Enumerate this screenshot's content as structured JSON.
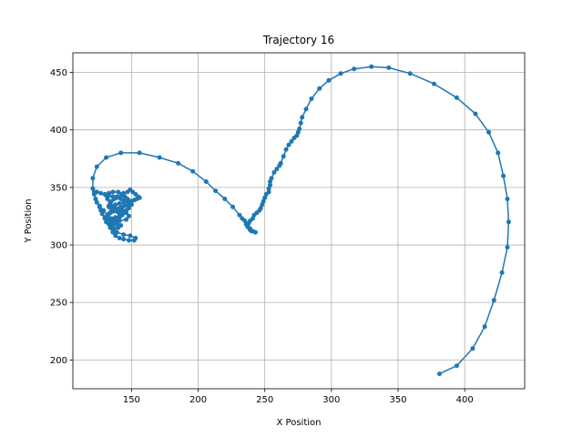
{
  "chart_data": {
    "type": "line",
    "title": "Trajectory 16",
    "xlabel": "X Position",
    "ylabel": "Y Position",
    "xlim": [
      106,
      445
    ],
    "ylim": [
      175,
      467
    ],
    "xticks": [
      150,
      200,
      250,
      300,
      350,
      400
    ],
    "yticks": [
      200,
      250,
      300,
      350,
      400,
      450
    ],
    "grid": true,
    "legend": "none",
    "series": [
      {
        "color": "#1f77b4",
        "marker": "circle",
        "points": [
          [
            381,
            188
          ],
          [
            394,
            195
          ],
          [
            406,
            210
          ],
          [
            415,
            229
          ],
          [
            422,
            252
          ],
          [
            428,
            276
          ],
          [
            432,
            298
          ],
          [
            433,
            320
          ],
          [
            432,
            340
          ],
          [
            429,
            360
          ],
          [
            425,
            380
          ],
          [
            418,
            398
          ],
          [
            408,
            414
          ],
          [
            394,
            428
          ],
          [
            377,
            440
          ],
          [
            359,
            449
          ],
          [
            343,
            454
          ],
          [
            330,
            455
          ],
          [
            317,
            453
          ],
          [
            307,
            449
          ],
          [
            298,
            443
          ],
          [
            291,
            436
          ],
          [
            285,
            427
          ],
          [
            281,
            418
          ],
          [
            278,
            411
          ],
          [
            277,
            406
          ],
          [
            276,
            401
          ],
          [
            275,
            398
          ],
          [
            274,
            395
          ],
          [
            272,
            393
          ],
          [
            270,
            390
          ],
          [
            268,
            387
          ],
          [
            266,
            383
          ],
          [
            264,
            377
          ],
          [
            262,
            371
          ],
          [
            261,
            369
          ],
          [
            259,
            366
          ],
          [
            257,
            363
          ],
          [
            255,
            358
          ],
          [
            254,
            355
          ],
          [
            254,
            352
          ],
          [
            253,
            349
          ],
          [
            253,
            346
          ],
          [
            251,
            344
          ],
          [
            250,
            341
          ],
          [
            249,
            338
          ],
          [
            248,
            335
          ],
          [
            247,
            332
          ],
          [
            246,
            330
          ],
          [
            244,
            328
          ],
          [
            242,
            326
          ],
          [
            241,
            323
          ],
          [
            239,
            321
          ],
          [
            238,
            319
          ],
          [
            237,
            317
          ],
          [
            238,
            315
          ],
          [
            239,
            313
          ],
          [
            240,
            312
          ],
          [
            243,
            311
          ],
          [
            241,
            312
          ],
          [
            239,
            314
          ],
          [
            237,
            316
          ],
          [
            236,
            318
          ],
          [
            235,
            321
          ],
          [
            233,
            323
          ],
          [
            231,
            326
          ],
          [
            226,
            333
          ],
          [
            220,
            340
          ],
          [
            213,
            347
          ],
          [
            206,
            355
          ],
          [
            196,
            364
          ],
          [
            185,
            371
          ],
          [
            171,
            376
          ],
          [
            156,
            380
          ],
          [
            142,
            380
          ],
          [
            131,
            376
          ],
          [
            124,
            368
          ],
          [
            121,
            358
          ],
          [
            121,
            349
          ],
          [
            123,
            340
          ],
          [
            126,
            334
          ],
          [
            129,
            330
          ],
          [
            132,
            326
          ],
          [
            135,
            323
          ],
          [
            137,
            322
          ],
          [
            141,
            321
          ],
          [
            146,
            322
          ],
          [
            148,
            325
          ],
          [
            146,
            328
          ],
          [
            143,
            330
          ],
          [
            140,
            331
          ],
          [
            137,
            333
          ],
          [
            134,
            337
          ],
          [
            132,
            340
          ],
          [
            131,
            343
          ],
          [
            133,
            345
          ],
          [
            136,
            346
          ],
          [
            140,
            346
          ],
          [
            144,
            345
          ],
          [
            147,
            346
          ],
          [
            149,
            348
          ],
          [
            151,
            346
          ],
          [
            153,
            344
          ],
          [
            155,
            342
          ],
          [
            156,
            341
          ],
          [
            154,
            340
          ],
          [
            152,
            339
          ],
          [
            150,
            338
          ],
          [
            149,
            336
          ],
          [
            147,
            335
          ],
          [
            145,
            334
          ],
          [
            143,
            333
          ],
          [
            141,
            332
          ],
          [
            139,
            331
          ],
          [
            137,
            330
          ],
          [
            136,
            329
          ],
          [
            134,
            328
          ],
          [
            133,
            327
          ],
          [
            132,
            325
          ],
          [
            131,
            324
          ],
          [
            130,
            323
          ],
          [
            132,
            322
          ],
          [
            134,
            321
          ],
          [
            136,
            320
          ],
          [
            138,
            319
          ],
          [
            139,
            318
          ],
          [
            141,
            317
          ],
          [
            140,
            315
          ],
          [
            137,
            314
          ],
          [
            135,
            315
          ],
          [
            136,
            317
          ],
          [
            138,
            320
          ],
          [
            140,
            323
          ],
          [
            142,
            326
          ],
          [
            144,
            328
          ],
          [
            146,
            330
          ],
          [
            148,
            332
          ],
          [
            150,
            335
          ],
          [
            149,
            338
          ],
          [
            147,
            340
          ],
          [
            145,
            342
          ],
          [
            142,
            343
          ],
          [
            139,
            342
          ],
          [
            137,
            340
          ],
          [
            135,
            338
          ],
          [
            134,
            336
          ],
          [
            133,
            334
          ],
          [
            135,
            332
          ],
          [
            137,
            330
          ],
          [
            139,
            329
          ],
          [
            141,
            327
          ],
          [
            143,
            326
          ],
          [
            141,
            324
          ],
          [
            139,
            323
          ],
          [
            137,
            322
          ],
          [
            135,
            321
          ],
          [
            134,
            319
          ],
          [
            135,
            317
          ],
          [
            136,
            313
          ],
          [
            139,
            311
          ],
          [
            144,
            309
          ],
          [
            149,
            308
          ],
          [
            153,
            306
          ],
          [
            152,
            304
          ],
          [
            148,
            304
          ],
          [
            144,
            305
          ],
          [
            141,
            306
          ],
          [
            138,
            308
          ],
          [
            136,
            311
          ],
          [
            134,
            315
          ],
          [
            133,
            318
          ],
          [
            132,
            321
          ],
          [
            130,
            324
          ],
          [
            128,
            327
          ],
          [
            127,
            330
          ],
          [
            126,
            333
          ],
          [
            124,
            337
          ],
          [
            123,
            340
          ],
          [
            122,
            344
          ],
          [
            122,
            346
          ],
          [
            124,
            346
          ],
          [
            127,
            345
          ],
          [
            130,
            344
          ],
          [
            133,
            343
          ],
          [
            136,
            342
          ],
          [
            139,
            341
          ],
          [
            142,
            340
          ],
          [
            145,
            339
          ],
          [
            147,
            338
          ],
          [
            144,
            337
          ],
          [
            141,
            336
          ],
          [
            138,
            335
          ],
          [
            135,
            334
          ],
          [
            133,
            333
          ],
          [
            135,
            331
          ],
          [
            138,
            330
          ],
          [
            141,
            329
          ],
          [
            143,
            328
          ],
          [
            141,
            325
          ],
          [
            138,
            324
          ],
          [
            135,
            323
          ],
          [
            133,
            322
          ],
          [
            131,
            320
          ],
          [
            133,
            319
          ],
          [
            136,
            319
          ],
          [
            139,
            318
          ],
          [
            142,
            317
          ]
        ]
      }
    ]
  }
}
